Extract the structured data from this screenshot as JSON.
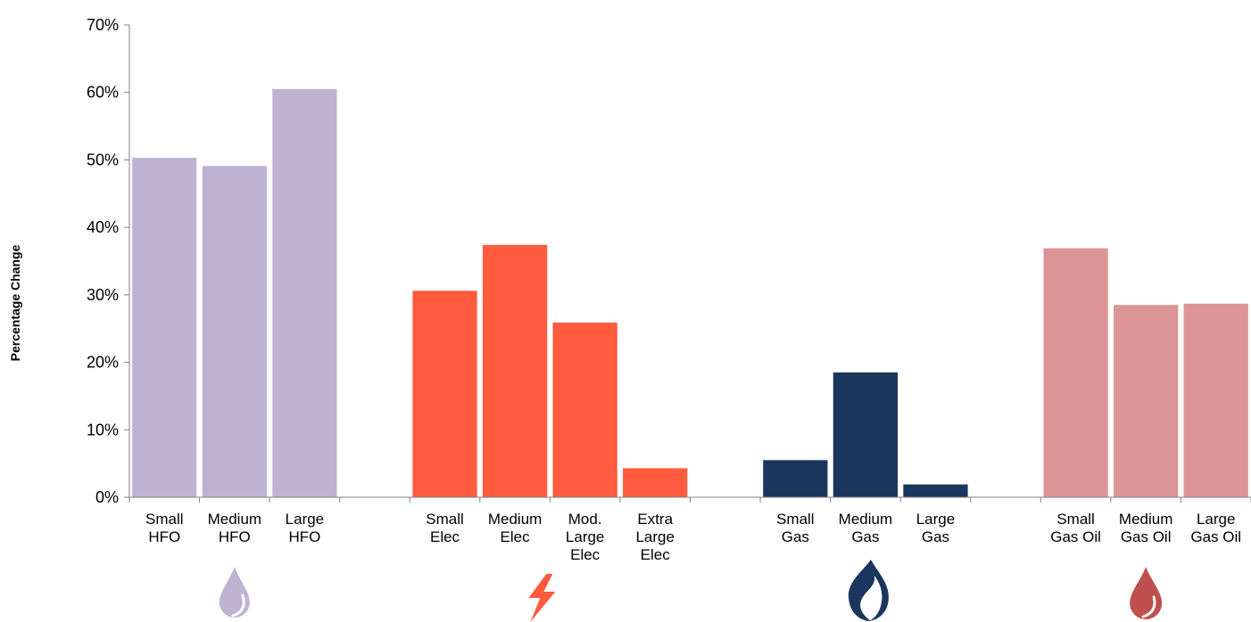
{
  "chart_data": {
    "type": "bar",
    "ylabel": "Percentage Change",
    "ylim": [
      0,
      70
    ],
    "yticks": [
      "0%",
      "10%",
      "20%",
      "30%",
      "40%",
      "50%",
      "60%",
      "70%"
    ],
    "grid": false,
    "categories": [
      {
        "lines": [
          "Small",
          "HFO"
        ],
        "value": 50.3,
        "group": "hfo"
      },
      {
        "lines": [
          "Medium",
          "HFO"
        ],
        "value": 49.1,
        "group": "hfo"
      },
      {
        "lines": [
          "Large",
          "HFO"
        ],
        "value": 60.5,
        "group": "hfo"
      },
      {
        "lines": [],
        "value": null,
        "group": "gap"
      },
      {
        "lines": [
          "Small",
          "Elec"
        ],
        "value": 30.6,
        "group": "elec"
      },
      {
        "lines": [
          "Medium",
          "Elec"
        ],
        "value": 37.4,
        "group": "elec"
      },
      {
        "lines": [
          "Mod.",
          "Large",
          "Elec"
        ],
        "value": 25.9,
        "group": "elec"
      },
      {
        "lines": [
          "Extra",
          "Large",
          "Elec"
        ],
        "value": 4.3,
        "group": "elec"
      },
      {
        "lines": [],
        "value": null,
        "group": "gap"
      },
      {
        "lines": [
          "Small",
          "Gas"
        ],
        "value": 5.5,
        "group": "gas"
      },
      {
        "lines": [
          "Medium",
          "Gas"
        ],
        "value": 18.5,
        "group": "gas"
      },
      {
        "lines": [
          "Large",
          "Gas"
        ],
        "value": 1.9,
        "group": "gas"
      },
      {
        "lines": [],
        "value": null,
        "group": "gap"
      },
      {
        "lines": [
          "Small",
          "Gas Oil"
        ],
        "value": 36.9,
        "group": "gasoil"
      },
      {
        "lines": [
          "Medium",
          "Gas Oil"
        ],
        "value": 28.5,
        "group": "gasoil"
      },
      {
        "lines": [
          "Large",
          "Gas Oil"
        ],
        "value": 28.7,
        "group": "gasoil"
      }
    ],
    "group_colors": {
      "hfo": "#bfb3d4",
      "elec": "#ff5b3e",
      "gas": "#1b365d",
      "gasoil": "#da9594"
    },
    "group_icons": [
      {
        "group": "hfo",
        "icon": "droplet-icon",
        "color": "#bfb3d4"
      },
      {
        "group": "elec",
        "icon": "lightning-bolt-icon",
        "color": "#ff5b3e"
      },
      {
        "group": "gas",
        "icon": "gas-flame-icon",
        "color": "#1b365d"
      },
      {
        "group": "gasoil",
        "icon": "oil-drop-icon",
        "color": "#c0504d"
      }
    ]
  }
}
